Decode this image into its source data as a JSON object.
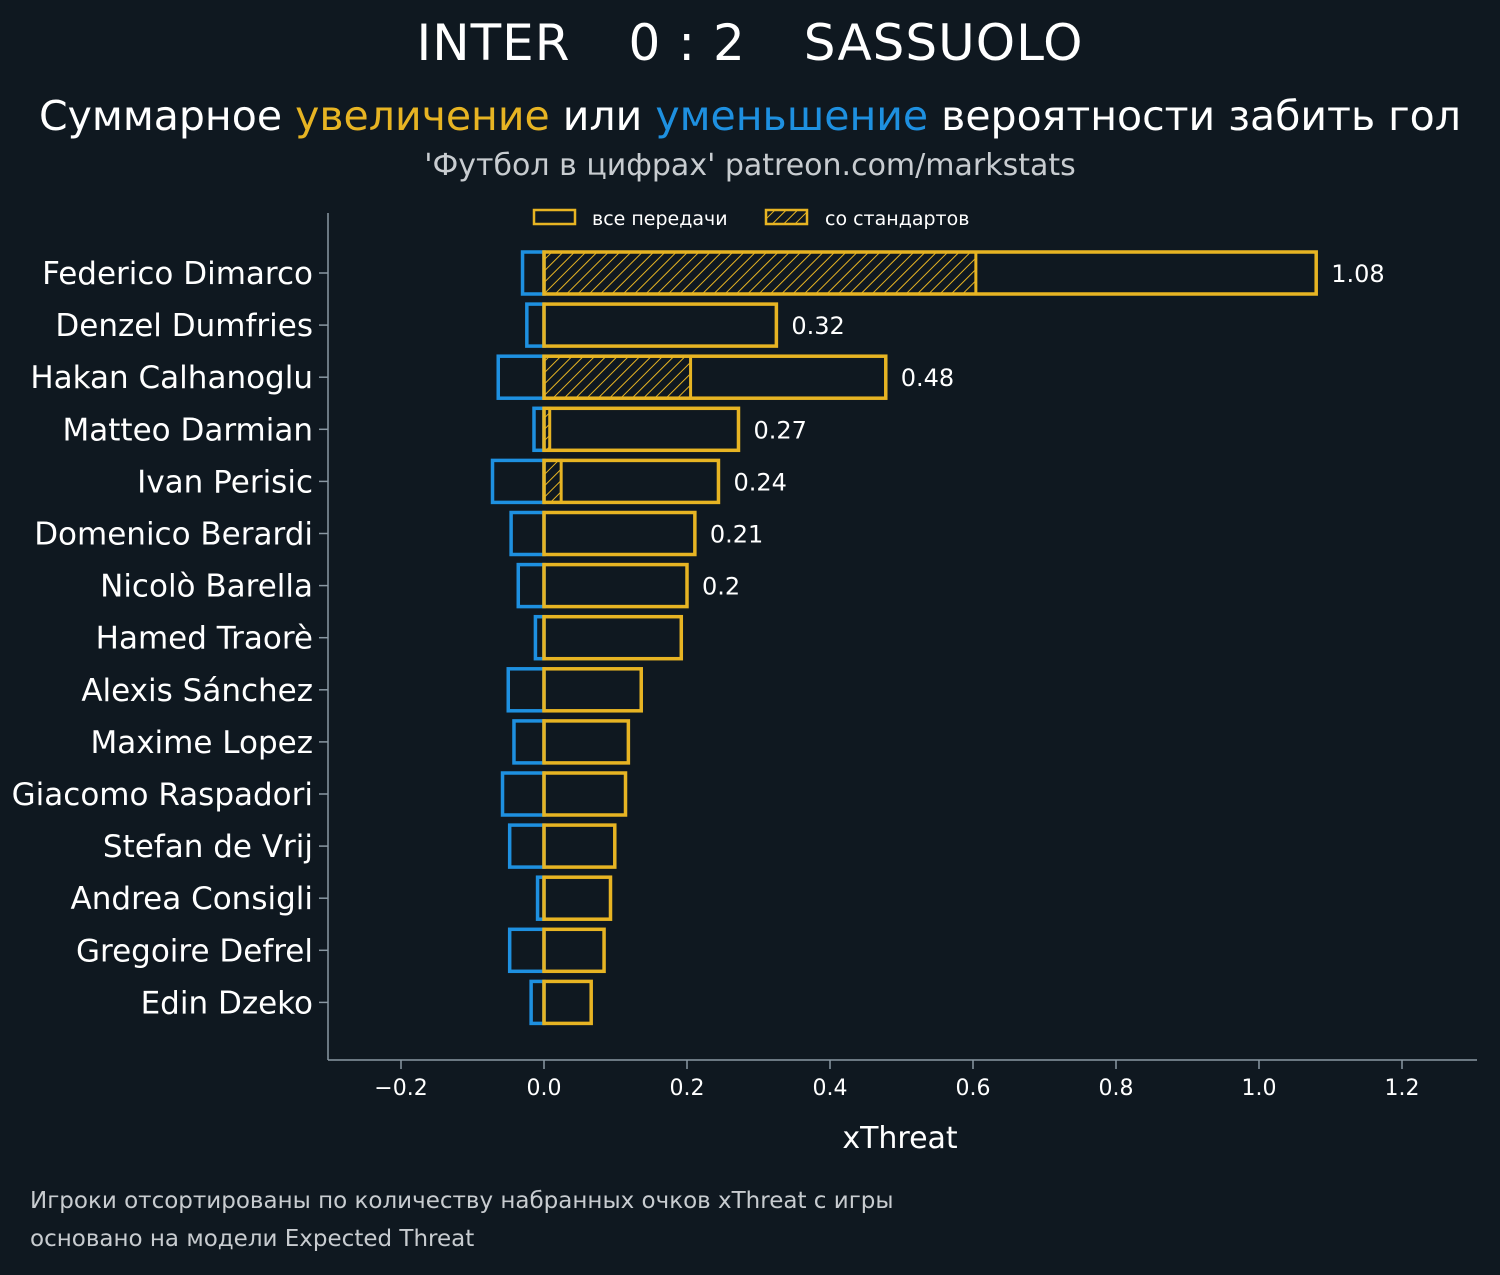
{
  "header": {
    "team_home": "INTER",
    "score": "0 : 2",
    "team_away": "SASSUOLO",
    "subtitle_part1": "Суммарное ",
    "subtitle_increase": "увеличение",
    "subtitle_part2": " или ",
    "subtitle_decrease": "уменьшение",
    "subtitle_part3": " вероятности забить гол",
    "source": "'Футбол в цифрах' patreon.com/markstats"
  },
  "colors": {
    "background": "#0f1820",
    "increase": "#e7b423",
    "decrease": "#1e90e0",
    "axis": "#8a98a2"
  },
  "footer": {
    "line1": "Игроки отсортированы по количеству набранных очков xThreat с игры",
    "line2": "основано на модели Expected Threat"
  },
  "chart_data": {
    "type": "bar",
    "orientation": "horizontal",
    "xlabel": "xThreat",
    "xlim": [
      -0.3,
      1.3
    ],
    "xticks": [
      -0.2,
      0.0,
      0.2,
      0.4,
      0.6,
      0.8,
      1.0,
      1.2
    ],
    "xtick_labels": [
      "−0.2",
      "0.0",
      "0.2",
      "0.4",
      "0.6",
      "0.8",
      "1.0",
      "1.2"
    ],
    "legend": {
      "position": "top-center",
      "entries": [
        "все передачи",
        "со стандартов"
      ]
    },
    "categories": [
      "Federico Dimarco",
      "Denzel Dumfries",
      "Hakan Calhanoglu",
      "Matteo Darmian",
      "Ivan Perisic",
      "Domenico Berardi",
      "Nicolò Barella",
      "Hamed Traorè",
      "Alexis Sánchez",
      "Maxime Lopez",
      "Giacomo Raspadori",
      "Stefan de Vrij",
      "Andrea Consigli",
      "Gregoire Defrel",
      "Edin Dzeko"
    ],
    "series": [
      {
        "name": "все передачи (увеличение)",
        "values": [
          1.08,
          0.325,
          0.478,
          0.272,
          0.244,
          0.211,
          0.2,
          0.192,
          0.136,
          0.118,
          0.114,
          0.099,
          0.093,
          0.084,
          0.066
        ]
      },
      {
        "name": "уменьшение",
        "values": [
          -0.03,
          -0.024,
          -0.064,
          -0.014,
          -0.072,
          -0.046,
          -0.036,
          -0.012,
          -0.05,
          -0.042,
          -0.058,
          -0.048,
          -0.009,
          -0.048,
          -0.018
        ]
      },
      {
        "name": "со стандартов",
        "values": [
          0.604,
          0,
          0.205,
          0.008,
          0.024,
          0,
          0,
          0,
          0,
          0,
          0,
          0,
          0,
          0,
          0
        ]
      }
    ],
    "value_labels": [
      "1.08",
      "0.32",
      "0.48",
      "0.27",
      "0.24",
      "0.21",
      "0.2",
      null,
      null,
      null,
      null,
      null,
      null,
      null,
      null
    ]
  }
}
